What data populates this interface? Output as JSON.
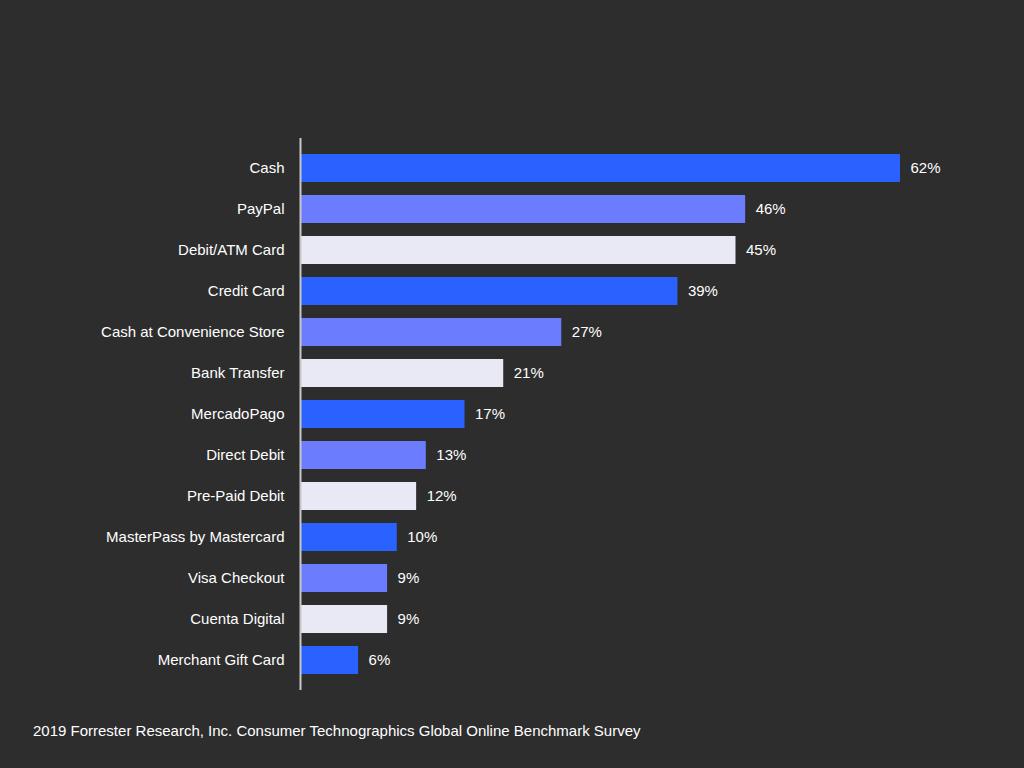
{
  "chart_data": {
    "type": "bar",
    "orientation": "horizontal",
    "caption": "2019 Forrester Research, Inc. Consumer Technographics Global Online Benchmark Survey",
    "categories": [
      "Cash",
      "PayPal",
      "Debit/ATM Card",
      "Credit Card",
      "Cash at Convenience Store",
      "Bank Transfer",
      "MercadoPago",
      "Direct Debit",
      "Pre-Paid Debit",
      "MasterPass by Mastercard",
      "Visa Checkout",
      "Cuenta Digital",
      "Merchant Gift Card"
    ],
    "values": [
      62,
      46,
      45,
      39,
      27,
      21,
      17,
      13,
      12,
      10,
      9,
      9,
      6
    ],
    "value_labels": [
      "62%",
      "46%",
      "45%",
      "39%",
      "27%",
      "21%",
      "17%",
      "13%",
      "12%",
      "10%",
      "9%",
      "9%",
      "6%"
    ],
    "colors": [
      "#2962ff",
      "#6c7cff",
      "#e8e9f5",
      "#2962ff",
      "#6c7cff",
      "#e8e9f5",
      "#2962ff",
      "#6c7cff",
      "#e8e9f5",
      "#2962ff",
      "#6c7cff",
      "#e8e9f5",
      "#2962ff"
    ],
    "xlim": [
      0,
      62
    ],
    "data_labels": true,
    "tick_labels": "y",
    "grid": false
  }
}
